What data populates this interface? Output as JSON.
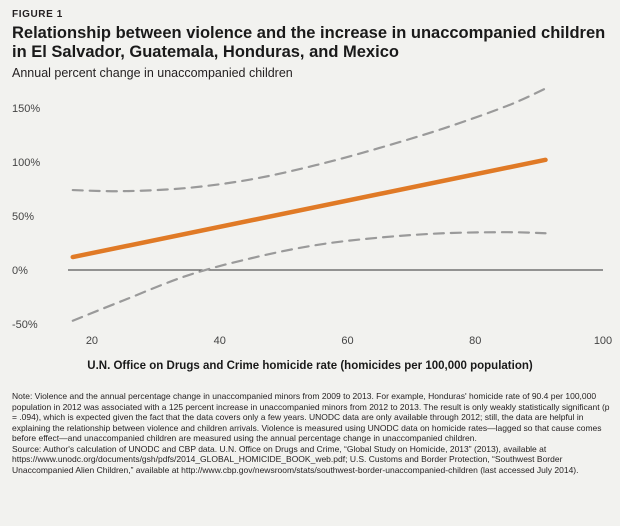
{
  "figure_label": "FIGURE 1",
  "title": "Relationship between violence and the increase in unaccompanied children in El Salvador, Guatemala, Honduras, and Mexico",
  "subtitle": "Annual percent change in unaccompanied children",
  "colors": {
    "fit_line": "#e07a26",
    "ci_band": "#9a9a9a",
    "background": "#f2f2ef",
    "axis": "#333333"
  },
  "chart_data": {
    "type": "line",
    "title": "Relationship between violence and the increase in unaccompanied children in El Salvador, Guatemala, Honduras, and Mexico",
    "ylabel": "Annual percent change in unaccompanied children",
    "xlabel": "U.N. Office on Drugs and Crime homicide rate (homicides per 100,000 population)",
    "xlim": [
      15,
      100
    ],
    "ylim": [
      -50,
      150
    ],
    "x_ticks": [
      "20",
      "40",
      "60",
      "80",
      "100"
    ],
    "y_ticks": [
      "150%",
      "100%",
      "50%",
      "0%",
      "-50%"
    ],
    "grid": false,
    "legend": "none",
    "series": [
      {
        "style": "solid",
        "color": "#e07a26",
        "x": [
          17,
          91
        ],
        "y": [
          12,
          102
        ]
      },
      {
        "style": "dashed",
        "color": "#9a9a9a",
        "x": [
          17,
          25,
          35,
          45,
          55,
          65,
          75,
          85,
          91
        ],
        "y": [
          74,
          73,
          76,
          84,
          97,
          113,
          131,
          152,
          168
        ]
      },
      {
        "style": "dashed",
        "color": "#9a9a9a",
        "x": [
          17,
          25,
          35,
          45,
          55,
          65,
          75,
          85,
          91
        ],
        "y": [
          -47,
          -28,
          -5,
          11,
          23,
          30,
          34,
          35,
          34
        ]
      }
    ]
  },
  "notes": {
    "note": "Note: Violence and the annual percentage change in unaccompanied minors from 2009 to 2013. For example, Honduras' homicide rate of 90.4 per 100,000 population in 2012 was associated with a 125 percent increase in unaccompanied minors from 2012 to 2013. The result is only weakly statistically significant (p = .094), which is expected given the fact that the data covers only a few years. UNODC data are only available through 2012; still, the data are helpful in explaining the relationship between violence and children arrivals. Violence is measured using UNODC data on homicide rates—lagged so that cause comes before effect—and unaccompanied children are measured using the annual percentage change in unaccompanied children.",
    "source": "Source: Author's calculation of UNODC and CBP data. U.N. Office on Drugs and Crime, “Global Study on Homicide, 2013” (2013), available at https://www.unodc.org/documents/gsh/pdfs/2014_GLOBAL_HOMICIDE_BOOK_web.pdf; U.S. Customs and Border Protection, “Southwest Border Unaccompanied Alien Children,” available at http://www.cbp.gov/newsroom/stats/southwest-border-unaccompanied-children (last accessed July 2014)."
  }
}
